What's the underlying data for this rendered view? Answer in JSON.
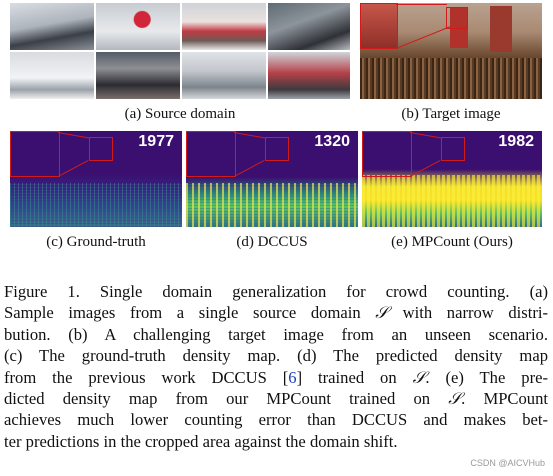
{
  "panels": {
    "source": {
      "caption": "(a) Source domain"
    },
    "target": {
      "caption": "(b) Target image"
    },
    "ground_truth": {
      "caption": "(c) Ground-truth",
      "count": "1977"
    },
    "dccus": {
      "caption": "(d) DCCUS",
      "count": "1320"
    },
    "mpcount": {
      "caption": "(e) MPCount (Ours)",
      "count": "1982"
    }
  },
  "caption_lines": {
    "l1": "Figure 1. Single domain generalization for crowd counting. (a)",
    "l2a": "Sample images from a single source domain ",
    "l2sym": "𝒮",
    "l2b": " with narrow distri-",
    "l3": "bution. (b) A challenging target image from an unseen scenario.",
    "l4": "(c) The ground-truth density map. (d) The predicted density map",
    "l5a": "from the previous work DCCUS [",
    "l5ref": "6",
    "l5b": "] trained on ",
    "l5sym": "𝒮",
    "l5c": ". (e) The pre-",
    "l6a": "dicted density map from our MPCount trained on ",
    "l6sym": "𝒮",
    "l6b": ". MPCount",
    "l7": "achieves much lower counting error than DCCUS and makes bet-",
    "l8": "ter predictions in the cropped area against the domain shift."
  },
  "watermark": "CSDN @AICVHub",
  "colors": {
    "box_red": "#d21a1a",
    "density_bg": "#3b0f70",
    "density_hi": "#f7e225"
  }
}
